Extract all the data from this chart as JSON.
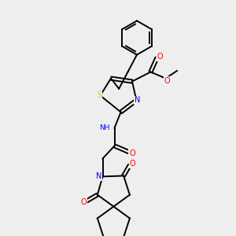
{
  "background_color": "#eeeeee",
  "bond_color": "#000000",
  "atom_colors": {
    "S": "#cccc00",
    "N": "#0000ff",
    "O": "#ff0000",
    "C": "#000000",
    "H": "#5aafaf"
  },
  "figsize": [
    3.0,
    3.0
  ],
  "dpi": 100,
  "xlim": [
    0,
    10
  ],
  "ylim": [
    0,
    10
  ]
}
